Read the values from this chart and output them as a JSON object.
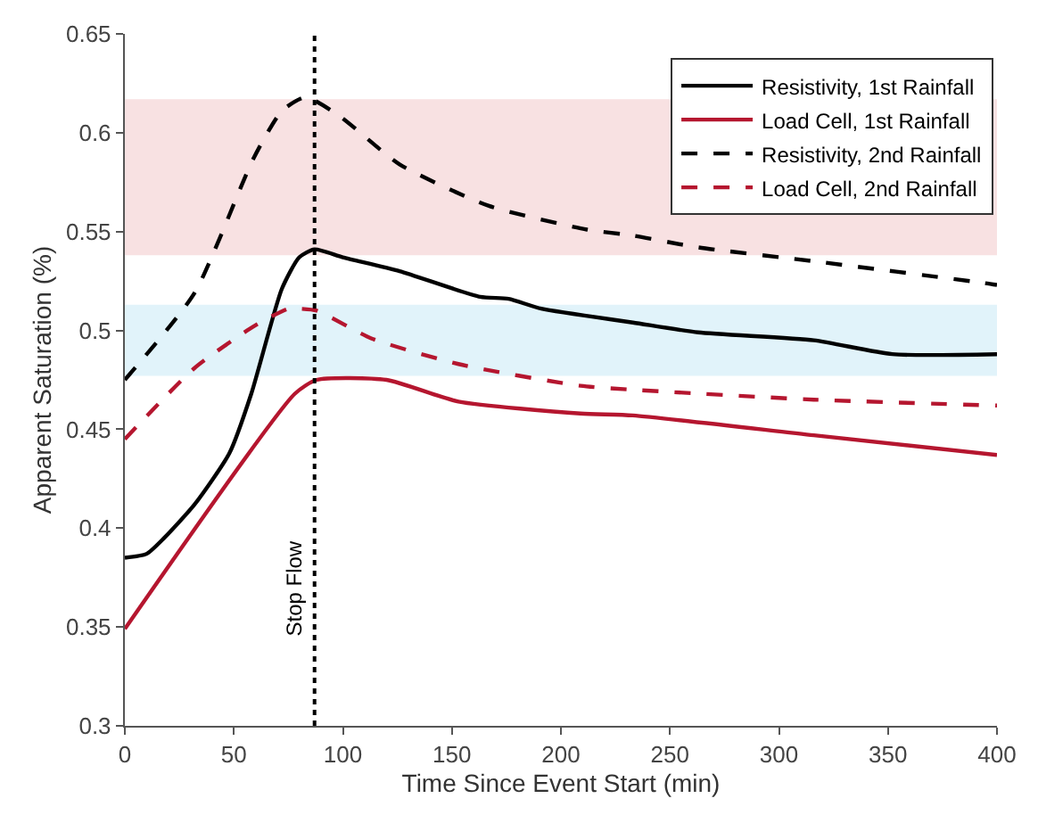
{
  "chart_data": {
    "type": "line",
    "xlabel": "Time Since Event Start (min)",
    "ylabel": "Apparent Saturation (%)",
    "xlim": [
      0,
      400
    ],
    "xticks": [
      0,
      50,
      100,
      150,
      200,
      250,
      300,
      350,
      400
    ],
    "ylim": [
      0.3,
      0.65
    ],
    "yticks": [
      0.3,
      0.35,
      0.4,
      0.45,
      0.5,
      0.55,
      0.6,
      0.65
    ],
    "grid": false,
    "legend": "top right",
    "marker": "none",
    "bands": [
      {
        "axis": "y",
        "from": 0.538,
        "to": 0.617,
        "color": "#f8e1e2"
      },
      {
        "axis": "y",
        "from": 0.477,
        "to": 0.513,
        "color": "#e1f3fa"
      }
    ],
    "ref_lines": [
      {
        "axis": "x",
        "value": 87,
        "label": "Stop Flow",
        "color": "#000000",
        "line_style": "dotted"
      }
    ],
    "series": [
      {
        "name": "Resistivity, 1st Rainfall",
        "color": "#000000",
        "line_style": "solid",
        "x": [
          0,
          10,
          18,
          32,
          48,
          58,
          72,
          80,
          87,
          100,
          126,
          163,
          176,
          191,
          233,
          263,
          316,
          352,
          400
        ],
        "values": [
          0.385,
          0.387,
          0.395,
          0.412,
          0.438,
          0.468,
          0.521,
          0.537,
          0.541,
          0.537,
          0.53,
          0.517,
          0.516,
          0.511,
          0.504,
          0.499,
          0.495,
          0.488,
          0.488
        ]
      },
      {
        "name": "Load Cell, 1st Rainfall",
        "color": "#b5162f",
        "line_style": "solid",
        "x": [
          0,
          78,
          88,
          120,
          153,
          209,
          233,
          316,
          400
        ],
        "values": [
          0.349,
          0.468,
          0.475,
          0.475,
          0.464,
          0.458,
          0.457,
          0.447,
          0.437
        ]
      },
      {
        "name": "Resistivity, 2nd Rainfall",
        "color": "#000000",
        "line_style": "dashed",
        "x": [
          0,
          32,
          59,
          72,
          83,
          99,
          126,
          167,
          212,
          233,
          263,
          316,
          394,
          400
        ],
        "values": [
          0.475,
          0.519,
          0.587,
          0.611,
          0.618,
          0.608,
          0.584,
          0.563,
          0.551,
          0.548,
          0.542,
          0.535,
          0.524,
          0.523
        ]
      },
      {
        "name": "Load Cell, 2nd Rainfall",
        "color": "#b5162f",
        "line_style": "dashed",
        "x": [
          0,
          32,
          59,
          75,
          80,
          88,
          113,
          153,
          209,
          233,
          316,
          400
        ],
        "values": [
          0.445,
          0.481,
          0.502,
          0.511,
          0.511,
          0.51,
          0.496,
          0.483,
          0.472,
          0.47,
          0.465,
          0.462
        ]
      }
    ]
  }
}
